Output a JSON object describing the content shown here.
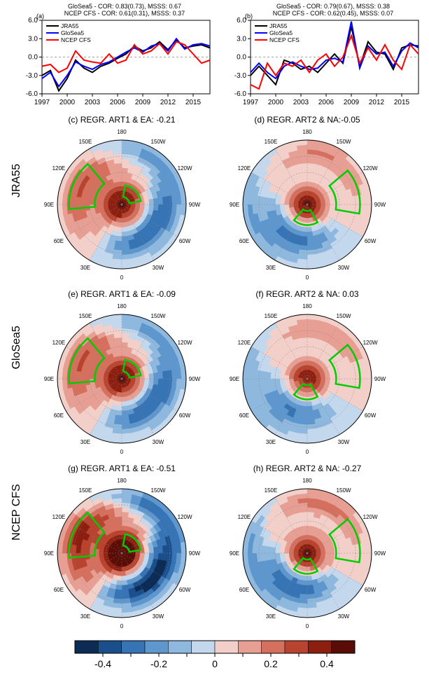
{
  "panel_a": {
    "letter": "(a)",
    "title_line1": "GloSea5 - COR: 0.83(0.73), MSSS: 0.67",
    "title_line2": "NCEP CFS - COR: 0.61(0.31), MSSS: 0.37",
    "legend": [
      "JRA55",
      "GloSea5",
      "NCEP CFS"
    ],
    "legend_colors": [
      "#000000",
      "#0000ff",
      "#ff0000"
    ],
    "xticks": [
      "1997",
      "2000",
      "2003",
      "2006",
      "2009",
      "2012",
      "2015"
    ],
    "ylim": [
      -6,
      6
    ],
    "yticks": [
      -6,
      -3,
      0,
      3,
      6
    ],
    "series": {
      "JRA55": [
        -3.0,
        -2.2,
        -5.5,
        -3.5,
        -0.5,
        -1.8,
        -2.5,
        -1.5,
        -1.0,
        -0.2,
        0.5,
        1.8,
        1.0,
        1.5,
        2.5,
        1.2,
        2.8,
        1.5,
        1.8,
        2.0,
        1.5
      ],
      "GloSea5": [
        -3.5,
        -2.5,
        -4.8,
        -3.0,
        -0.8,
        -1.5,
        -2.0,
        -1.2,
        -0.8,
        0.0,
        0.8,
        1.5,
        0.8,
        1.8,
        2.2,
        1.0,
        3.0,
        1.3,
        2.0,
        2.2,
        1.8
      ],
      "NCEPCFS": [
        -1.5,
        -1.2,
        -2.5,
        -1.8,
        1.0,
        -0.5,
        -0.8,
        -1.0,
        0.5,
        -1.0,
        -0.5,
        2.0,
        0.5,
        1.0,
        2.2,
        0.5,
        2.5,
        2.0,
        0.5,
        -1.0,
        -0.5
      ]
    }
  },
  "panel_b": {
    "letter": "(b)",
    "title_line1": "GloSea5 - COR: 0.79(0.67), MSSS: 0.38",
    "title_line2": "NCEP CFS - COR: 0.62(0.45), MSSS: 0.07",
    "legend": [
      "JRA55",
      "GloSea5",
      "NCEP CFS"
    ],
    "legend_colors": [
      "#000000",
      "#0000ff",
      "#ff0000"
    ],
    "xticks": [
      "1997",
      "2000",
      "2003",
      "2006",
      "2009",
      "2012",
      "2015"
    ],
    "ylim": [
      -6,
      6
    ],
    "yticks": [
      -6,
      -3,
      0,
      3,
      6
    ],
    "series": {
      "JRA55": [
        -3.0,
        -1.5,
        -3.0,
        -4.5,
        -0.5,
        -1.0,
        -2.0,
        -1.5,
        -2.5,
        -1.0,
        0.5,
        -1.0,
        5.0,
        -1.5,
        2.5,
        0.8,
        0.5,
        -2.0,
        1.5,
        2.0,
        1.8
      ],
      "GloSea5": [
        -2.5,
        -1.0,
        -2.5,
        -3.5,
        -1.5,
        -0.8,
        -1.5,
        -2.0,
        -1.8,
        -0.5,
        -0.2,
        -0.8,
        5.8,
        -1.8,
        1.8,
        0.5,
        0.8,
        -1.5,
        1.0,
        2.3,
        1.5
      ],
      "NCEPCFS": [
        -4.5,
        -5.2,
        -1.0,
        -3.0,
        -1.0,
        -1.5,
        -0.5,
        -2.5,
        -0.5,
        0.5,
        -1.5,
        0.0,
        3.5,
        -1.0,
        1.5,
        -0.5,
        2.0,
        -0.5,
        -2.0,
        2.0,
        0.5
      ]
    }
  },
  "maps": {
    "row_labels": [
      "JRA55",
      "GloSea5",
      "NCEP CFS"
    ],
    "titles": {
      "c": "(c) REGR. ART1 & EA: -0.21",
      "d": "(d) REGR. ART2 & NA:-0.05",
      "e": "(e) REGR. ART1 & EA: -0.09",
      "f": "(f) REGR. ART2 & NA: 0.03",
      "g": "(g) REGR. ART1 & EA: -0.51",
      "h": "(h) REGR. ART2 & NA: -0.27"
    },
    "lon_labels": [
      "0",
      "30E",
      "60E",
      "90E",
      "120E",
      "150E",
      "180",
      "150W",
      "120W",
      "90W",
      "60W",
      "30W"
    ],
    "green_box_color": "#00cc00",
    "intensity": {
      "c": 0.5,
      "d": 0.5,
      "e": 0.5,
      "f": 0.45,
      "g": 0.7,
      "h": 0.55
    }
  },
  "colorbar": {
    "colors": [
      "#0c2c56",
      "#1b4f8c",
      "#3674b5",
      "#5e97cd",
      "#8fb8de",
      "#c3d7ed",
      "#f2cfc9",
      "#e79f94",
      "#d56f5e",
      "#b8432f",
      "#8c1f10",
      "#5a0d06"
    ],
    "ticks": [
      "-0.4",
      "",
      "-0.2",
      "",
      "0",
      "",
      "0.2",
      "",
      "0.4"
    ]
  }
}
